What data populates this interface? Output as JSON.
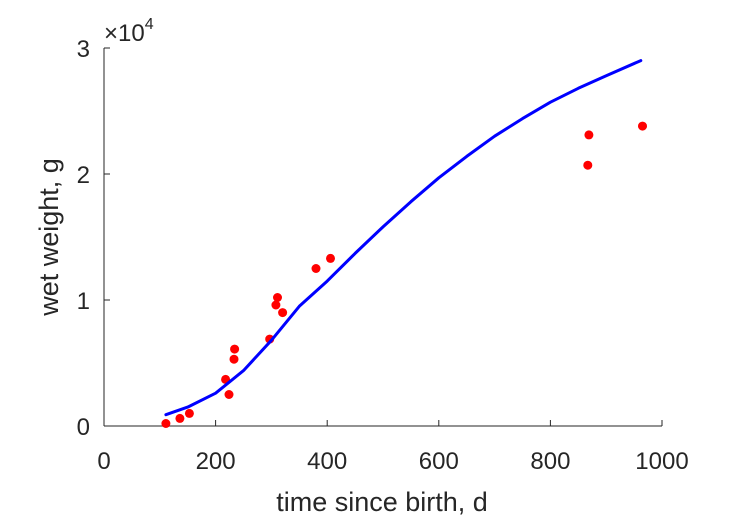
{
  "chart_data": {
    "type": "scatter",
    "title": "",
    "xlabel": "time since birth, d",
    "ylabel": "wet weight, g",
    "xlim": [
      0,
      1000
    ],
    "ylim": [
      0,
      30000
    ],
    "x_ticks": [
      0,
      200,
      400,
      600,
      800,
      1000
    ],
    "x_tick_labels": [
      "0",
      "200",
      "400",
      "600",
      "800",
      "1000"
    ],
    "y_ticks": [
      0,
      10000,
      20000,
      30000
    ],
    "y_tick_labels": [
      "0",
      "1",
      "2",
      "3"
    ],
    "y_exponent_base": "×10",
    "y_exponent_power": "4",
    "grid": false,
    "legend": "none",
    "series": [
      {
        "kind": "scatter",
        "color": "#ff0000",
        "points": [
          [
            111,
            200
          ],
          [
            136,
            600
          ],
          [
            153,
            1000
          ],
          [
            218,
            3700
          ],
          [
            224,
            2500
          ],
          [
            233,
            5300
          ],
          [
            234,
            6100
          ],
          [
            297,
            6900
          ],
          [
            308,
            9600
          ],
          [
            311,
            10200
          ],
          [
            320,
            9000
          ],
          [
            380,
            12500
          ],
          [
            406,
            13300
          ],
          [
            867,
            20700
          ],
          [
            869,
            23100
          ],
          [
            965,
            23800
          ]
        ]
      },
      {
        "kind": "line",
        "color": "#0000ff",
        "points": [
          [
            111,
            900
          ],
          [
            150,
            1500
          ],
          [
            200,
            2600
          ],
          [
            250,
            4400
          ],
          [
            300,
            6800
          ],
          [
            350,
            9500
          ],
          [
            400,
            11500
          ],
          [
            450,
            13700
          ],
          [
            500,
            15800
          ],
          [
            550,
            17800
          ],
          [
            600,
            19700
          ],
          [
            650,
            21400
          ],
          [
            700,
            23000
          ],
          [
            750,
            24400
          ],
          [
            800,
            25700
          ],
          [
            850,
            26800
          ],
          [
            900,
            27800
          ],
          [
            962,
            29000
          ]
        ]
      }
    ]
  }
}
